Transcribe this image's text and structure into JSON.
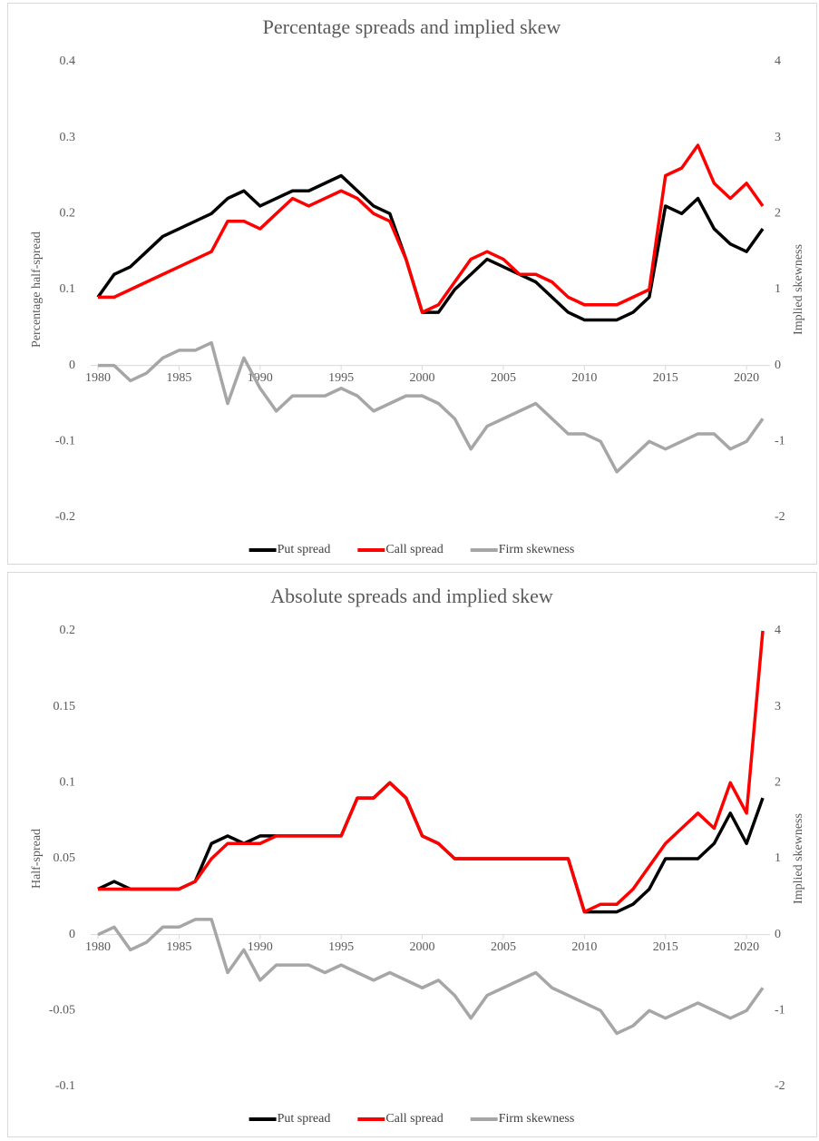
{
  "chart_data": [
    {
      "type": "line",
      "title": "Percentage spreads and implied skew",
      "y_label": "Percentage half-spread",
      "y2_label": "Implied skewness",
      "x": [
        1980,
        1981,
        1982,
        1983,
        1984,
        1985,
        1986,
        1987,
        1988,
        1989,
        1990,
        1991,
        1992,
        1993,
        1994,
        1995,
        1996,
        1997,
        1998,
        1999,
        2000,
        2001,
        2002,
        2003,
        2004,
        2005,
        2006,
        2007,
        2008,
        2009,
        2010,
        2011,
        2012,
        2013,
        2014,
        2015,
        2016,
        2017,
        2018,
        2019,
        2020,
        2021
      ],
      "xlim": [
        1980,
        2021
      ],
      "xticks": [
        1980,
        1985,
        1990,
        1995,
        2000,
        2005,
        2010,
        2015,
        2020
      ],
      "ylim": [
        -0.2,
        0.4
      ],
      "yticks": [
        -0.2,
        -0.1,
        0,
        0.1,
        0.2,
        0.3,
        0.4
      ],
      "y2lim": [
        -2,
        4
      ],
      "y2ticks": [
        -2,
        -1,
        0,
        1,
        2,
        3,
        4
      ],
      "grid": false,
      "legend": "bottom",
      "series": [
        {
          "name": "Put spread",
          "color": "#000000",
          "values": [
            0.09,
            0.12,
            0.13,
            0.15,
            0.17,
            0.18,
            0.19,
            0.2,
            0.22,
            0.23,
            0.21,
            0.22,
            0.23,
            0.23,
            0.24,
            0.25,
            0.23,
            0.21,
            0.2,
            0.14,
            0.07,
            0.07,
            0.1,
            0.12,
            0.14,
            0.13,
            0.12,
            0.11,
            0.09,
            0.07,
            0.06,
            0.06,
            0.06,
            0.07,
            0.09,
            0.21,
            0.2,
            0.22,
            0.18,
            0.16,
            0.15,
            0.18
          ]
        },
        {
          "name": "Call spread",
          "color": "#ff0000",
          "values": [
            0.09,
            0.09,
            0.1,
            0.11,
            0.12,
            0.13,
            0.14,
            0.15,
            0.19,
            0.19,
            0.18,
            0.2,
            0.22,
            0.21,
            0.22,
            0.23,
            0.22,
            0.2,
            0.19,
            0.14,
            0.07,
            0.08,
            0.11,
            0.14,
            0.15,
            0.14,
            0.12,
            0.12,
            0.11,
            0.09,
            0.08,
            0.08,
            0.08,
            0.09,
            0.1,
            0.25,
            0.26,
            0.29,
            0.24,
            0.22,
            0.24,
            0.21
          ]
        },
        {
          "name": "Firm skewness",
          "color": "#a6a6a6",
          "axis": "y2",
          "values": [
            0,
            0,
            -0.2,
            -0.1,
            0.1,
            0.2,
            0.2,
            0.3,
            -0.5,
            0.1,
            -0.3,
            -0.6,
            -0.4,
            -0.4,
            -0.4,
            -0.3,
            -0.4,
            -0.6,
            -0.5,
            -0.4,
            -0.4,
            -0.5,
            -0.7,
            -1.1,
            -0.8,
            -0.7,
            -0.6,
            -0.5,
            -0.7,
            -0.9,
            -0.9,
            -1,
            -1.4,
            -1.2,
            -1,
            -1.1,
            -1,
            -0.9,
            -0.9,
            -1.1,
            -1,
            -0.7
          ]
        }
      ]
    },
    {
      "type": "line",
      "title": "Absolute spreads and implied skew",
      "y_label": "Half-spread",
      "y2_label": "Implied skewness",
      "x": [
        1980,
        1981,
        1982,
        1983,
        1984,
        1985,
        1986,
        1987,
        1988,
        1989,
        1990,
        1991,
        1992,
        1993,
        1994,
        1995,
        1996,
        1997,
        1998,
        1999,
        2000,
        2001,
        2002,
        2003,
        2004,
        2005,
        2006,
        2007,
        2008,
        2009,
        2010,
        2011,
        2012,
        2013,
        2014,
        2015,
        2016,
        2017,
        2018,
        2019,
        2020,
        2021
      ],
      "xlim": [
        1980,
        2021
      ],
      "xticks": [
        1980,
        1985,
        1990,
        1995,
        2000,
        2005,
        2010,
        2015,
        2020
      ],
      "ylim": [
        -0.1,
        0.2
      ],
      "yticks": [
        -0.1,
        -0.05,
        0,
        0.05,
        0.1,
        0.15,
        0.2
      ],
      "y2lim": [
        -2,
        4
      ],
      "y2ticks": [
        -2,
        -1,
        0,
        1,
        2,
        3,
        4
      ],
      "grid": false,
      "legend": "bottom",
      "series": [
        {
          "name": "Put spread",
          "color": "#000000",
          "values": [
            0.03,
            0.035,
            0.03,
            0.03,
            0.03,
            0.03,
            0.035,
            0.06,
            0.065,
            0.06,
            0.065,
            0.065,
            0.065,
            0.065,
            0.065,
            0.065,
            0.09,
            0.09,
            0.1,
            0.09,
            0.065,
            0.06,
            0.05,
            0.05,
            0.05,
            0.05,
            0.05,
            0.05,
            0.05,
            0.05,
            0.015,
            0.015,
            0.015,
            0.02,
            0.03,
            0.05,
            0.05,
            0.05,
            0.06,
            0.08,
            0.06,
            0.09
          ]
        },
        {
          "name": "Call spread",
          "color": "#ff0000",
          "values": [
            0.03,
            0.03,
            0.03,
            0.03,
            0.03,
            0.03,
            0.035,
            0.05,
            0.06,
            0.06,
            0.06,
            0.065,
            0.065,
            0.065,
            0.065,
            0.065,
            0.09,
            0.09,
            0.1,
            0.09,
            0.065,
            0.06,
            0.05,
            0.05,
            0.05,
            0.05,
            0.05,
            0.05,
            0.05,
            0.05,
            0.015,
            0.02,
            0.02,
            0.03,
            0.045,
            0.06,
            0.07,
            0.08,
            0.07,
            0.1,
            0.08,
            0.2
          ]
        },
        {
          "name": "Firm skewness",
          "color": "#a6a6a6",
          "axis": "y2",
          "values": [
            0,
            0.1,
            -0.2,
            -0.1,
            0.1,
            0.1,
            0.2,
            0.2,
            -0.5,
            -0.2,
            -0.6,
            -0.4,
            -0.4,
            -0.4,
            -0.5,
            -0.4,
            -0.5,
            -0.6,
            -0.5,
            -0.6,
            -0.7,
            -0.6,
            -0.8,
            -1.1,
            -0.8,
            -0.7,
            -0.6,
            -0.5,
            -0.7,
            -0.8,
            -0.9,
            -1,
            -1.3,
            -1.2,
            -1,
            -1.1,
            -1,
            -0.9,
            -1,
            -1.1,
            -1,
            -0.7
          ]
        }
      ]
    }
  ]
}
